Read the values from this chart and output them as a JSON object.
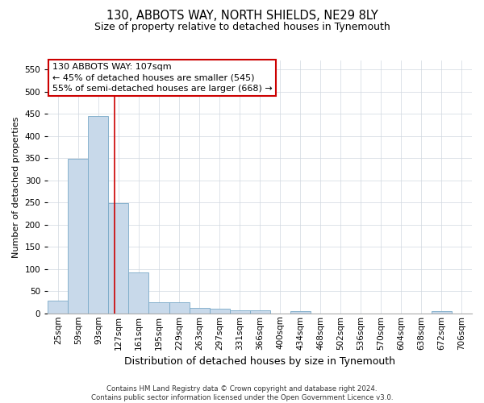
{
  "title": "130, ABBOTS WAY, NORTH SHIELDS, NE29 8LY",
  "subtitle": "Size of property relative to detached houses in Tynemouth",
  "xlabel": "Distribution of detached houses by size in Tynemouth",
  "ylabel": "Number of detached properties",
  "bar_color": "#c8d9ea",
  "bar_edge_color": "#7aaac8",
  "categories": [
    "25sqm",
    "59sqm",
    "93sqm",
    "127sqm",
    "161sqm",
    "195sqm",
    "229sqm",
    "263sqm",
    "297sqm",
    "331sqm",
    "366sqm",
    "400sqm",
    "434sqm",
    "468sqm",
    "502sqm",
    "536sqm",
    "570sqm",
    "604sqm",
    "638sqm",
    "672sqm",
    "706sqm"
  ],
  "values": [
    28,
    349,
    445,
    248,
    93,
    25,
    25,
    13,
    10,
    7,
    6,
    0,
    5,
    0,
    0,
    0,
    0,
    0,
    0,
    5,
    0
  ],
  "ylim": [
    0,
    570
  ],
  "yticks": [
    0,
    50,
    100,
    150,
    200,
    250,
    300,
    350,
    400,
    450,
    500,
    550
  ],
  "vline_x": 2.82,
  "vline_color": "#cc0000",
  "annotation_line1": "130 ABBOTS WAY: 107sqm",
  "annotation_line2": "← 45% of detached houses are smaller (545)",
  "annotation_line3": "55% of semi-detached houses are larger (668) →",
  "footer_text": "Contains HM Land Registry data © Crown copyright and database right 2024.\nContains public sector information licensed under the Open Government Licence v3.0.",
  "background_color": "#ffffff",
  "grid_color": "#d0d8e0",
  "title_fontsize": 10.5,
  "subtitle_fontsize": 9,
  "ylabel_fontsize": 8,
  "xlabel_fontsize": 9,
  "tick_fontsize": 7.5,
  "annot_fontsize": 8
}
